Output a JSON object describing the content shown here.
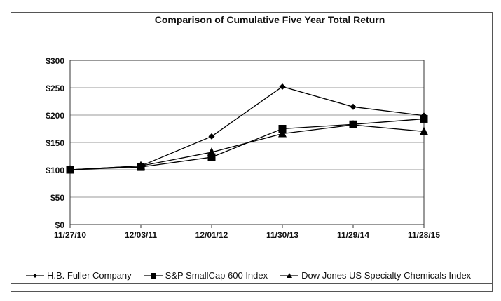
{
  "chart_data": {
    "type": "line",
    "title": "Comparison of Cumulative Five Year Total Return",
    "xlabel": "",
    "ylabel": "",
    "categories": [
      "11/27/10",
      "12/03/11",
      "12/01/12",
      "11/30/13",
      "11/29/14",
      "11/28/15"
    ],
    "y_ticks": [
      "$0",
      "$50",
      "$100",
      "$150",
      "$200",
      "$250",
      "$300"
    ],
    "y_tick_values": [
      0,
      50,
      100,
      150,
      200,
      250,
      300
    ],
    "ylim": [
      0,
      300
    ],
    "grid": true,
    "legend_position": "bottom",
    "series": [
      {
        "name": "H.B. Fuller Company",
        "marker": "diamond",
        "values": [
          100,
          107,
          161,
          252,
          215,
          199
        ]
      },
      {
        "name": "S&P SmallCap 600 Index",
        "marker": "square",
        "values": [
          100,
          105,
          123,
          175,
          183,
          193
        ]
      },
      {
        "name": "Dow Jones US Specialty Chemicals Index",
        "marker": "triangle",
        "values": [
          100,
          107,
          132,
          166,
          182,
          170
        ]
      }
    ]
  },
  "colors": {
    "line": "#000000",
    "grid": "#999999",
    "frame": "#555555"
  }
}
